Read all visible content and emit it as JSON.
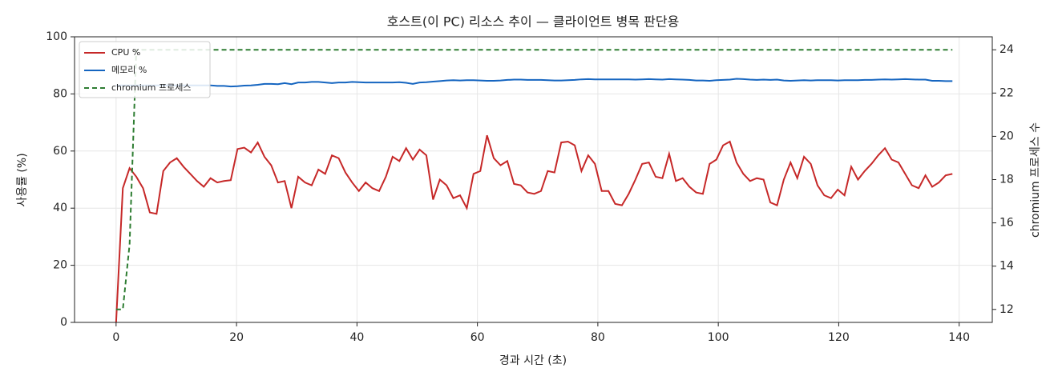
{
  "chart_data": {
    "type": "line",
    "title": "호스트(이 PC) 리소스 추이 — 클라이언트 병목 판단용",
    "xlabel": "경과 시간 (초)",
    "ylabel": "사용률 (%)",
    "y2label": "chromium 프로세스 수",
    "x": [
      0,
      1.12,
      2.24,
      3.36,
      4.48,
      5.6,
      6.72,
      7.84,
      8.96,
      10.08,
      11.2,
      12.32,
      13.44,
      14.56,
      15.68,
      16.8,
      17.92,
      19.04,
      20.16,
      21.28,
      22.4,
      23.52,
      24.64,
      25.76,
      26.88,
      28,
      29.12,
      30.24,
      31.36,
      32.48,
      33.6,
      34.72,
      35.84,
      36.96,
      38.08,
      39.2,
      40.32,
      41.44,
      42.56,
      43.68,
      44.8,
      45.92,
      47.04,
      48.16,
      49.28,
      50.4,
      51.52,
      52.64,
      53.76,
      54.88,
      56,
      57.12,
      58.24,
      59.36,
      60.48,
      61.6,
      62.72,
      63.84,
      64.96,
      66.08,
      67.2,
      68.32,
      69.44,
      70.56,
      71.68,
      72.8,
      73.92,
      75.04,
      76.16,
      77.28,
      78.4,
      79.52,
      80.64,
      81.76,
      82.88,
      84,
      85.12,
      86.24,
      87.36,
      88.48,
      89.6,
      90.72,
      91.84,
      92.96,
      94.08,
      95.2,
      96.32,
      97.44,
      98.56,
      99.68,
      100.8,
      101.92,
      103.04,
      104.16,
      105.28,
      106.4,
      107.52,
      108.64,
      109.76,
      110.88,
      112,
      113.12,
      114.24,
      115.36,
      116.48,
      117.6,
      118.72,
      119.84,
      120.96,
      122.08,
      123.2,
      124.32,
      125.44,
      126.56,
      127.68,
      128.8,
      129.92,
      131.04,
      132.16,
      133.28,
      134.4,
      135.52,
      136.64,
      137.76,
      138.88
    ],
    "series": [
      {
        "name": "CPU %",
        "color": "#c62828",
        "values": [
          0,
          47,
          54,
          51,
          47,
          38.5,
          38,
          53,
          56,
          57.5,
          54.5,
          52,
          49.5,
          47.5,
          50.5,
          49,
          49.5,
          49.8,
          60.7,
          61.2,
          59.5,
          63,
          58,
          55,
          49,
          49.5,
          40,
          51,
          49,
          48,
          53.5,
          52,
          58.5,
          57.5,
          52.5,
          49,
          46,
          49,
          47,
          46,
          51,
          58,
          56.5,
          61,
          57,
          60.5,
          58.5,
          43,
          50,
          48,
          43.5,
          44.5,
          40,
          52,
          53,
          65.5,
          57.5,
          55,
          56.5,
          48.5,
          48,
          45.5,
          45,
          46,
          53,
          52.5,
          63,
          63.3,
          62,
          53,
          58.5,
          55.5,
          46,
          46,
          41.5,
          41,
          45,
          50,
          55.5,
          56,
          51,
          50.5,
          59,
          49.5,
          50.5,
          47.5,
          45.5,
          45,
          55.5,
          57,
          62,
          63.3,
          56,
          52,
          49.5,
          50.5,
          50,
          42,
          41,
          50,
          56,
          50.5,
          58,
          55.5,
          48,
          44.5,
          43.5,
          46.5,
          44.5,
          54.5,
          50,
          53,
          55.5,
          58.5,
          61,
          57,
          56,
          52,
          48,
          47,
          51.5,
          47.5,
          49,
          51.5,
          52
        ]
      },
      {
        "name": "메모리 %",
        "color": "#1565c0",
        "values": [
          83,
          83,
          83,
          83,
          83,
          83,
          83,
          83,
          83,
          83,
          83,
          83,
          83,
          83,
          83,
          82.8,
          82.8,
          82.6,
          82.7,
          82.9,
          83,
          83.2,
          83.5,
          83.5,
          83.4,
          83.8,
          83.4,
          84,
          84,
          84.2,
          84.2,
          84,
          83.8,
          84,
          84,
          84.2,
          84.1,
          84,
          84,
          84,
          84,
          84,
          84.1,
          83.9,
          83.5,
          84,
          84.1,
          84.3,
          84.5,
          84.7,
          84.8,
          84.7,
          84.8,
          84.8,
          84.7,
          84.6,
          84.6,
          84.7,
          84.9,
          85,
          85,
          84.9,
          84.9,
          84.9,
          84.8,
          84.7,
          84.7,
          84.8,
          84.9,
          85.1,
          85.2,
          85.1,
          85.1,
          85.1,
          85.1,
          85.1,
          85.1,
          85,
          85.1,
          85.2,
          85.1,
          85,
          85.2,
          85.1,
          85,
          84.9,
          84.7,
          84.7,
          84.6,
          84.8,
          84.9,
          85,
          85.3,
          85.2,
          85,
          84.9,
          85,
          84.9,
          85,
          84.7,
          84.6,
          84.7,
          84.8,
          84.7,
          84.8,
          84.8,
          84.8,
          84.7,
          84.8,
          84.8,
          84.8,
          84.9,
          84.9,
          85,
          85.1,
          85,
          85.1,
          85.2,
          85.1,
          85,
          85,
          84.6,
          84.6,
          84.5,
          84.5
        ]
      },
      {
        "name": "chromium 프로세스",
        "color": "#2e7d32",
        "dashed": true,
        "axis": "y2",
        "values": [
          12,
          12,
          15,
          24,
          24,
          24,
          24,
          24,
          24,
          24,
          24,
          24,
          24,
          24,
          24,
          24,
          24,
          24,
          24,
          24,
          24,
          24,
          24,
          24,
          24,
          24,
          24,
          24,
          24,
          24,
          24,
          24,
          24,
          24,
          24,
          24,
          24,
          24,
          24,
          24,
          24,
          24,
          24,
          24,
          24,
          24,
          24,
          24,
          24,
          24,
          24,
          24,
          24,
          24,
          24,
          24,
          24,
          24,
          24,
          24,
          24,
          24,
          24,
          24,
          24,
          24,
          24,
          24,
          24,
          24,
          24,
          24,
          24,
          24,
          24,
          24,
          24,
          24,
          24,
          24,
          24,
          24,
          24,
          24,
          24,
          24,
          24,
          24,
          24,
          24,
          24,
          24,
          24,
          24,
          24,
          24,
          24,
          24,
          24,
          24,
          24,
          24,
          24,
          24,
          24,
          24,
          24,
          24,
          24,
          24,
          24,
          24,
          24,
          24,
          24,
          24,
          24,
          24,
          24,
          24,
          24,
          24,
          24,
          24,
          24
        ]
      }
    ],
    "xlim": [
      -6.9,
      145.5
    ],
    "xticks": [
      0,
      20,
      40,
      60,
      80,
      100,
      120,
      140
    ],
    "ylim": [
      0,
      100
    ],
    "yticks": [
      0,
      20,
      40,
      60,
      80,
      100
    ],
    "y2lim": [
      11.4,
      24.6
    ],
    "y2ticks": [
      12,
      14,
      16,
      18,
      20,
      22,
      24
    ],
    "grid": true,
    "legend": "upper-left"
  }
}
